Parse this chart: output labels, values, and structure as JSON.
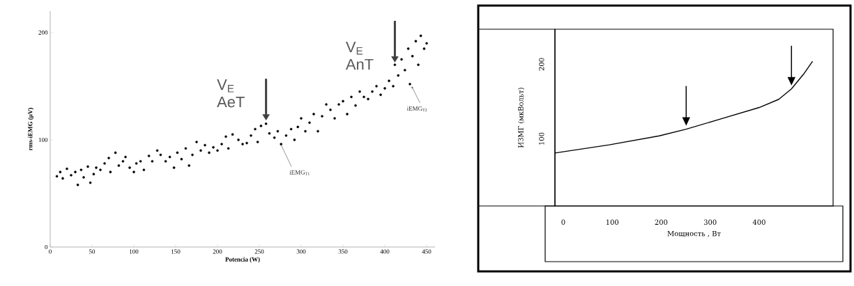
{
  "chart_data": [
    {
      "type": "scatter",
      "xlabel": "Potencia (W)",
      "ylabel": "rms-iEMG (μV)",
      "xlim": [
        0,
        460
      ],
      "ylim": [
        0,
        220
      ],
      "xticks": [
        0,
        50,
        100,
        150,
        200,
        250,
        300,
        350,
        400,
        450
      ],
      "yticks": [
        0,
        100,
        200
      ],
      "marker": "circle",
      "color": "#000000",
      "x": [
        8,
        12,
        15,
        20,
        25,
        30,
        33,
        37,
        40,
        45,
        48,
        52,
        55,
        60,
        65,
        70,
        72,
        78,
        82,
        87,
        90,
        95,
        100,
        103,
        108,
        112,
        118,
        122,
        128,
        132,
        138,
        143,
        148,
        152,
        157,
        162,
        166,
        170,
        175,
        180,
        185,
        190,
        195,
        200,
        205,
        210,
        213,
        218,
        225,
        230,
        235,
        240,
        245,
        248,
        252,
        258,
        262,
        268,
        272,
        276,
        282,
        288,
        292,
        296,
        300,
        305,
        310,
        315,
        320,
        325,
        330,
        335,
        340,
        345,
        350,
        355,
        360,
        365,
        370,
        375,
        380,
        385,
        390,
        395,
        400,
        405,
        410,
        412,
        416,
        420,
        424,
        428,
        430,
        433,
        437,
        440,
        443,
        447,
        450
      ],
      "values": [
        66,
        70,
        64,
        73,
        67,
        70,
        58,
        72,
        65,
        75,
        60,
        68,
        74,
        72,
        78,
        83,
        70,
        88,
        76,
        80,
        84,
        74,
        70,
        78,
        80,
        72,
        85,
        80,
        90,
        86,
        80,
        84,
        74,
        88,
        82,
        92,
        76,
        86,
        98,
        90,
        95,
        88,
        93,
        90,
        96,
        103,
        92,
        105,
        100,
        96,
        97,
        104,
        110,
        98,
        113,
        115,
        106,
        102,
        108,
        96,
        104,
        110,
        100,
        112,
        120,
        108,
        116,
        124,
        108,
        122,
        133,
        128,
        120,
        133,
        136,
        124,
        140,
        132,
        145,
        140,
        138,
        145,
        150,
        142,
        148,
        155,
        150,
        170,
        160,
        175,
        165,
        185,
        152,
        178,
        192,
        170,
        197,
        185,
        190
      ],
      "annotations": [
        {
          "text": "V$_{E}$ AeT",
          "x": 258,
          "y": 118
        },
        {
          "text": "V$_{E}$ AnT",
          "x": 412,
          "y": 172
        },
        {
          "text": "iEMG$_{T1}$",
          "x": 275,
          "y": 97
        },
        {
          "text": "iEMG$_{T2}$",
          "x": 432,
          "y": 150
        }
      ]
    },
    {
      "type": "line",
      "xlabel": "Мощность , Вт",
      "ylabel": "ИЗМГ (мкВольт)",
      "xlim": [
        -17,
        551
      ],
      "ylim": [
        10,
        247
      ],
      "xticks": [
        0,
        100,
        200,
        300,
        400
      ],
      "yticks": [
        100,
        200
      ],
      "marker": "none",
      "color": "#000000",
      "x": [
        -17,
        94,
        196,
        251,
        323,
        400,
        440,
        466,
        491,
        509
      ],
      "values": [
        81,
        92,
        104,
        113,
        127,
        142,
        153,
        167,
        187,
        204
      ]
    }
  ]
}
